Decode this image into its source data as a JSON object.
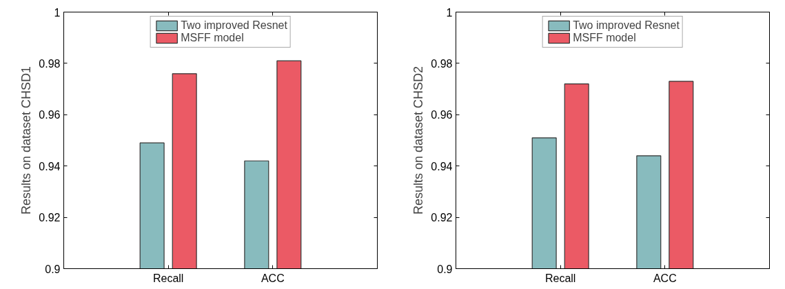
{
  "chart_data": [
    {
      "type": "bar",
      "ylabel": "Results on dataset CHSD1",
      "categories": [
        "Recall",
        "ACC"
      ],
      "series": [
        {
          "name": "Two improved Resnet",
          "color": "#88bbbe",
          "values": [
            0.949,
            0.942
          ]
        },
        {
          "name": "MSFF model",
          "color": "#eb5a65",
          "values": [
            0.976,
            0.981
          ]
        }
      ],
      "ylim": [
        0.9,
        1
      ],
      "yticks": [
        0.9,
        0.92,
        0.94,
        0.96,
        0.98,
        1
      ],
      "grid": false,
      "legend": "top"
    },
    {
      "type": "bar",
      "ylabel": "Results on dataset CHSD2",
      "categories": [
        "Recall",
        "ACC"
      ],
      "series": [
        {
          "name": "Two improved Resnet",
          "color": "#88bbbe",
          "values": [
            0.951,
            0.944
          ]
        },
        {
          "name": "MSFF model",
          "color": "#eb5a65",
          "values": [
            0.972,
            0.973
          ]
        }
      ],
      "ylim": [
        0.9,
        1
      ],
      "yticks": [
        0.9,
        0.92,
        0.94,
        0.96,
        0.98,
        1
      ],
      "grid": false,
      "legend": "top"
    }
  ]
}
